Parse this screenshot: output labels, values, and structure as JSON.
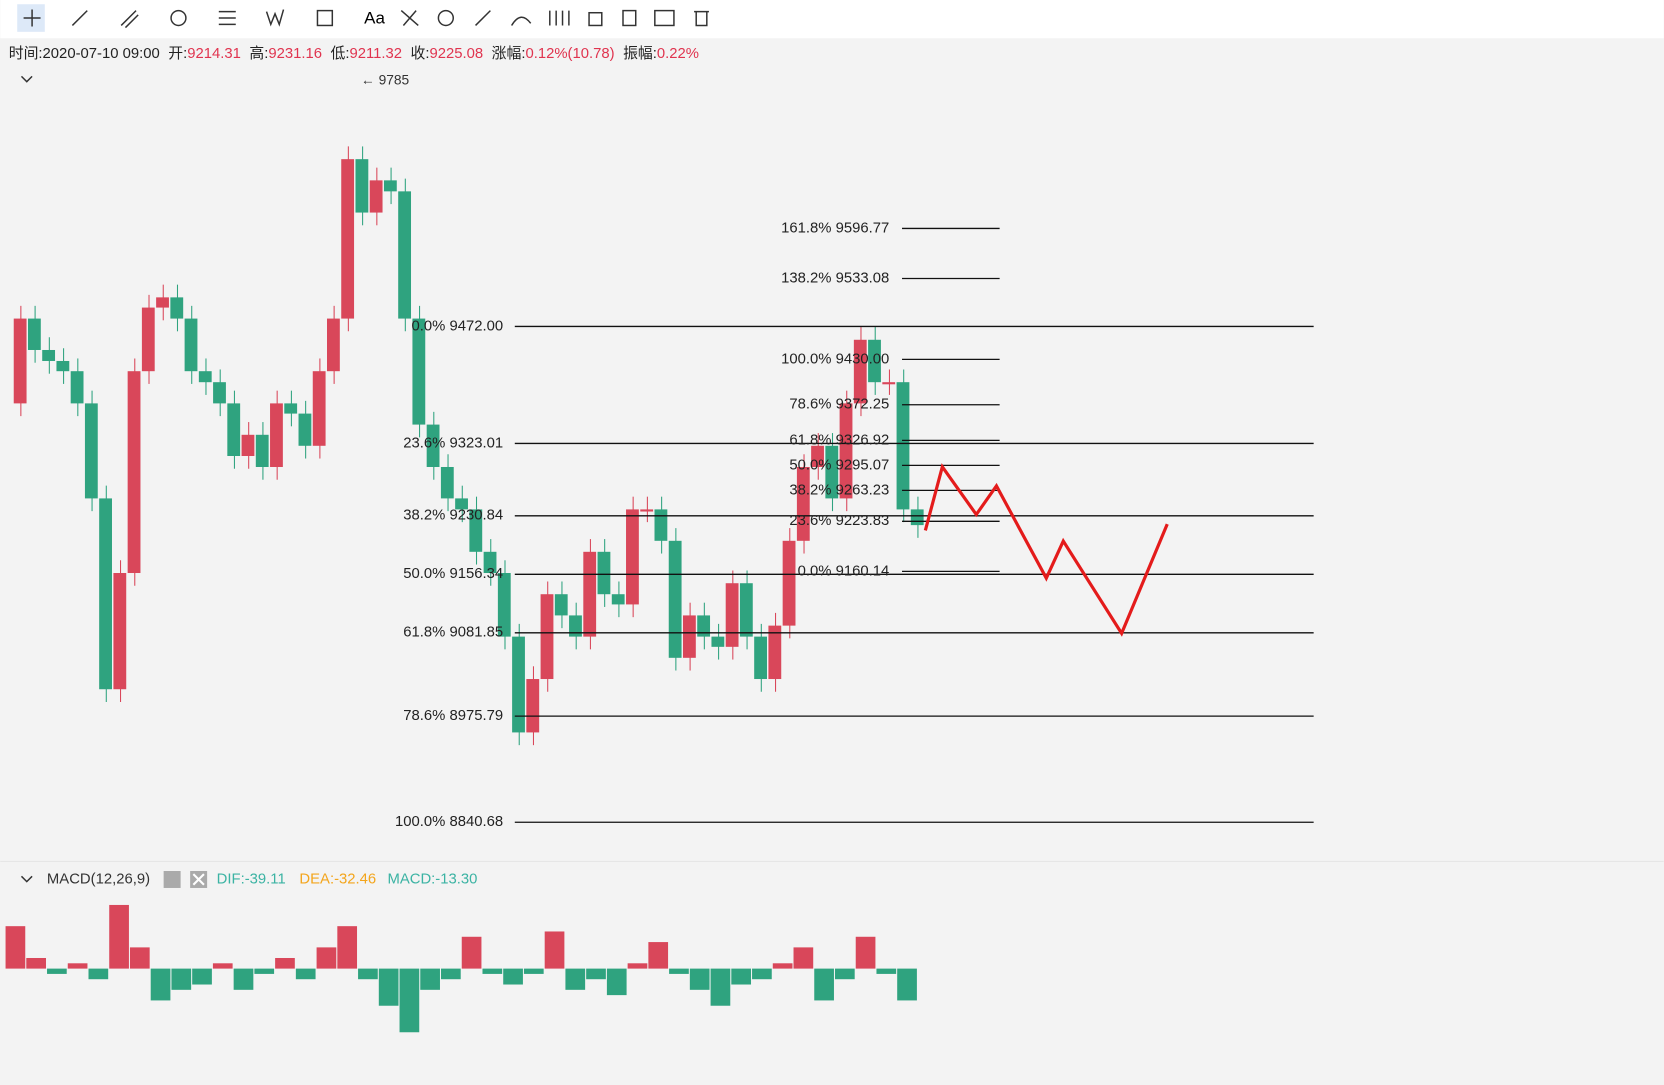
{
  "info_bar": [
    {
      "label": "时间:",
      "value": "2020-07-10 09:00"
    },
    {
      "label": "开:",
      "value": "9214.31"
    },
    {
      "label": "高:",
      "value": "9231.16"
    },
    {
      "label": "低:",
      "value": "9211.32"
    },
    {
      "label": "收:",
      "value": "9225.08"
    },
    {
      "label": "涨幅:",
      "value": "0.12%(10.78)"
    },
    {
      "label": "振幅:",
      "value": "0.22%"
    }
  ],
  "toolbar": {
    "text_tool": "Aa"
  },
  "chart": {
    "high_marker": "← 9785",
    "high": 9785,
    "low": 8840.68,
    "prices": [
      9374,
      9482,
      9442,
      9428,
      9415,
      9374,
      9253,
      9010,
      9158,
      9415,
      9496,
      9509,
      9482,
      9415,
      9401,
      9374,
      9307,
      9334,
      9293,
      9374,
      9361,
      9320,
      9415,
      9482,
      9685,
      9617,
      9658,
      9644,
      9482,
      9347,
      9293,
      9253,
      9239,
      9185,
      9158,
      9077,
      8955,
      9023,
      9131,
      9104,
      9077,
      9185,
      9131,
      9118,
      9239,
      9239,
      9199,
      9050,
      9104,
      9077,
      9064,
      9145,
      9077,
      9023,
      9091,
      9199,
      9293,
      9320,
      9253,
      9374,
      9455,
      9401,
      9401,
      9239,
      9219
    ],
    "fib_main": [
      {
        "label": "0.0% 9472.00",
        "price": 9472
      },
      {
        "label": "23.6% 9323.01",
        "price": 9323.01
      },
      {
        "label": "38.2% 9230.84",
        "price": 9230.84
      },
      {
        "label": "50.0% 9156.34",
        "price": 9156.34
      },
      {
        "label": "61.8% 9081.85",
        "price": 9081.85
      },
      {
        "label": "78.6% 8975.79",
        "price": 8975.79
      },
      {
        "label": "100.0% 8840.68",
        "price": 8840.68
      }
    ],
    "fib_small": [
      {
        "label": "161.8% 9596.77",
        "price": 9596.77
      },
      {
        "label": "138.2% 9533.08",
        "price": 9533.08
      },
      {
        "label": "100.0% 9430.00",
        "price": 9430
      },
      {
        "label": "78.6% 9372.25",
        "price": 9372.25
      },
      {
        "label": "61.8% 9326.92",
        "price": 9326.92
      },
      {
        "label": "50.0% 9295.07",
        "price": 9295.07
      },
      {
        "label": "38.2% 9263.23",
        "price": 9263.23
      },
      {
        "label": "23.6% 9223.83",
        "price": 9223.83
      },
      {
        "label": "0.0% 9160.14",
        "price": 9160.14
      }
    ]
  },
  "macd": {
    "title": "MACD(12,26,9)",
    "dif": "DIF:-39.11",
    "dea": "DEA:-32.46",
    "macd": "MACD:-13.30",
    "histogram": [
      40,
      10,
      -5,
      5,
      -10,
      60,
      20,
      -30,
      -20,
      -15,
      5,
      -20,
      -5,
      10,
      -10,
      20,
      40,
      -10,
      -35,
      -60,
      -20,
      -10,
      30,
      -5,
      -15,
      -5,
      35,
      -20,
      -10,
      -25,
      5,
      25,
      -5,
      -20,
      -35,
      -15,
      -10,
      5,
      20,
      -30,
      -10,
      30,
      -5,
      -30
    ]
  }
}
